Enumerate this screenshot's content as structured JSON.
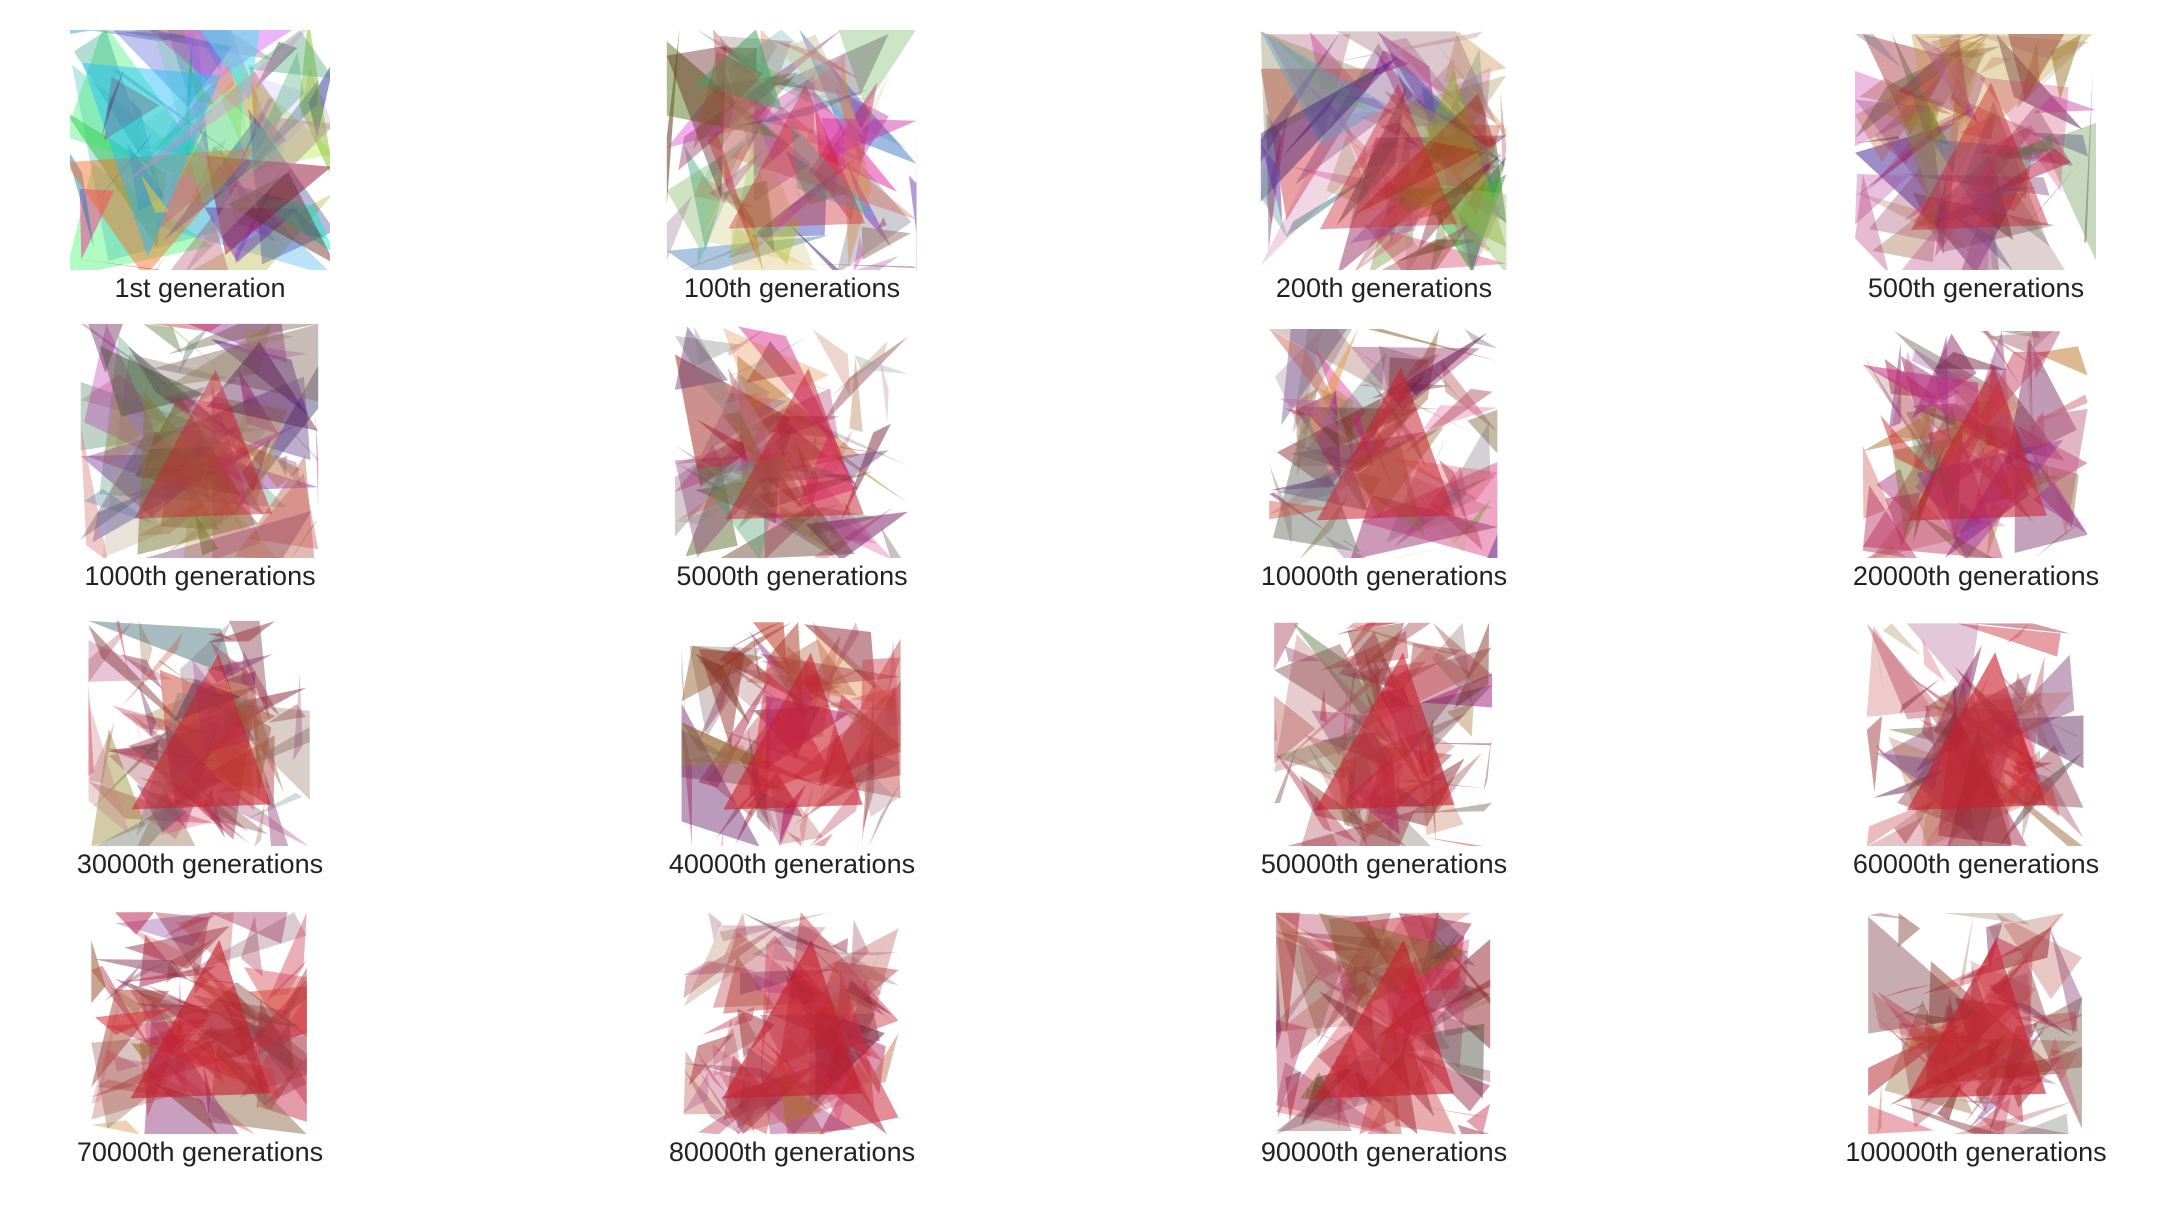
{
  "caption_color": "#222222",
  "target_color": "#c8202c",
  "items": [
    {
      "label": "1st generation",
      "generation": 1,
      "convergence": 0.0
    },
    {
      "label": "100th generations",
      "generation": 100,
      "convergence": 0.35
    },
    {
      "label": "200th generations",
      "generation": 200,
      "convergence": 0.42
    },
    {
      "label": "500th generations",
      "generation": 500,
      "convergence": 0.5
    },
    {
      "label": "1000th generations",
      "generation": 1000,
      "convergence": 0.56
    },
    {
      "label": "5000th generations",
      "generation": 5000,
      "convergence": 0.64
    },
    {
      "label": "10000th generations",
      "generation": 10000,
      "convergence": 0.72
    },
    {
      "label": "20000th generations",
      "generation": 20000,
      "convergence": 0.78
    },
    {
      "label": "30000th generations",
      "generation": 30000,
      "convergence": 0.84
    },
    {
      "label": "40000th generations",
      "generation": 40000,
      "convergence": 0.88
    },
    {
      "label": "50000th generations",
      "generation": 50000,
      "convergence": 0.9
    },
    {
      "label": "60000th generations",
      "generation": 60000,
      "convergence": 0.92
    },
    {
      "label": "70000th generations",
      "generation": 70000,
      "convergence": 0.94
    },
    {
      "label": "80000th generations",
      "generation": 80000,
      "convergence": 0.95
    },
    {
      "label": "90000th generations",
      "generation": 90000,
      "convergence": 0.96
    },
    {
      "label": "100000th generations",
      "generation": 100000,
      "convergence": 0.97
    }
  ]
}
